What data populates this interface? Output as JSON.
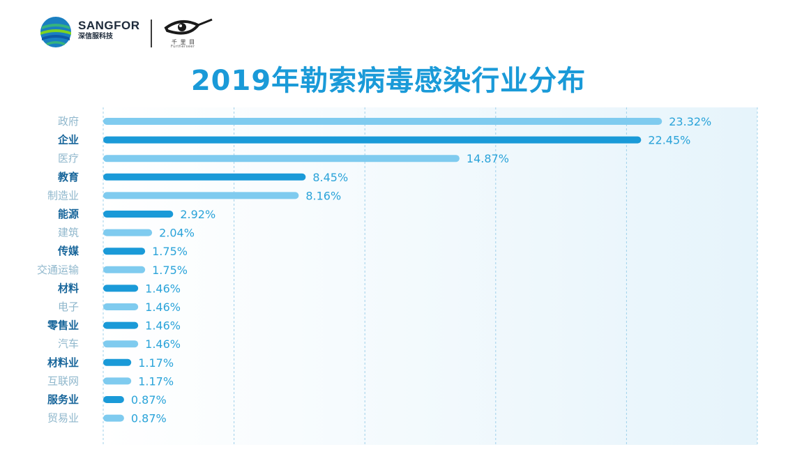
{
  "header": {
    "brand_name": "SANGFOR",
    "brand_sub": "深信服科技",
    "partner_text": "千 里 目",
    "partner_sub": "Furtherseer"
  },
  "chart_data": {
    "type": "bar",
    "orientation": "horizontal",
    "title": "2019年勒索病毒感染行业分布",
    "categories": [
      "政府",
      "企业",
      "医疗",
      "教育",
      "制造业",
      "能源",
      "建筑",
      "传媒",
      "交通运输",
      "材料",
      "电子",
      "零售业",
      "汽车",
      "材料业",
      "互联网",
      "服务业",
      "贸易业"
    ],
    "values": [
      23.32,
      22.45,
      14.87,
      8.45,
      8.16,
      2.92,
      2.04,
      1.75,
      1.75,
      1.46,
      1.46,
      1.46,
      1.46,
      1.17,
      1.17,
      0.87,
      0.87
    ],
    "value_labels": [
      "23.32%",
      "22.45%",
      "14.87%",
      "8.45%",
      "8.16%",
      "2.92%",
      "2.04%",
      "1.75%",
      "1.75%",
      "1.46%",
      "1.46%",
      "1.46%",
      "1.46%",
      "1.17%",
      "1.17%",
      "0.87%",
      "0.87%"
    ],
    "xlim": [
      0,
      27.3
    ],
    "grid": true,
    "grid_style": "dashed-vertical",
    "colors": {
      "bar_odd": "#7fcbef",
      "bar_even": "#1a9ad8",
      "label_odd": "#8fb7cc",
      "label_even": "#17659a",
      "value_label": "#2aa3d9",
      "grid": "#9fd0ea",
      "plot_bg_start": "#ffffff",
      "plot_bg_end": "#e6f4fb"
    }
  }
}
